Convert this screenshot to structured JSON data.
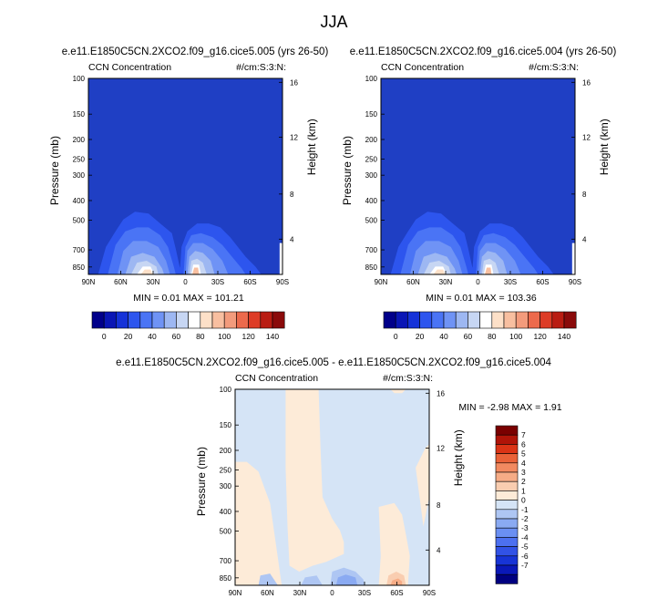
{
  "page_title": "JJA",
  "colors": {
    "base_fill": "#1f3fc4",
    "abs_levels": [
      "#01008a",
      "#0a16b5",
      "#1532d8",
      "#2d55ee",
      "#4a74f5",
      "#6f93f5",
      "#9db7f2",
      "#c7d6f3",
      "#ffffff",
      "#fde0c8",
      "#f8bfa0",
      "#f39b7c",
      "#ec6a4c",
      "#dd3c26",
      "#b91c12",
      "#8a0a0a"
    ],
    "diff_levels": [
      "#000080",
      "#0a18b8",
      "#1734d6",
      "#3152e6",
      "#4c70f0",
      "#6a8ff2",
      "#8aaaf2",
      "#aec6f3",
      "#d5e4f6",
      "#fdebd8",
      "#f9cdb0",
      "#f6ac86",
      "#f28a60",
      "#ea6238",
      "#db3416",
      "#b01408",
      "#7a0000"
    ]
  },
  "chart_data": [
    {
      "type": "heatmap",
      "title": "e.e11.E1850C5CN.2XCO2.f09_g16.cice5.005 (yrs 26-50)",
      "left_label": "CCN Concentration",
      "right_label": "#/cm:S:3:N:",
      "ylabel": "Pressure (mb)",
      "ylabel_right": "Height (km)",
      "x_ticks": [
        "90N",
        "60N",
        "30N",
        "0",
        "30S",
        "60S",
        "90S"
      ],
      "y_ticks": [
        "100",
        "150",
        "200",
        "250",
        "300",
        "400",
        "500",
        "700",
        "850"
      ],
      "height_ticks": [
        "16",
        "12",
        "8",
        "4"
      ],
      "min_value": "0.01",
      "max_value": "101.21",
      "stats_label": "MIN =   0.01   MAX = 101.21"
    },
    {
      "type": "heatmap",
      "title": "e.e11.E1850C5CN.2XCO2.f09_g16.cice5.004 (yrs 26-50)",
      "left_label": "CCN Concentration",
      "right_label": "#/cm:S:3:N:",
      "ylabel": "Pressure (mb)",
      "ylabel_right": "Height (km)",
      "x_ticks": [
        "90N",
        "60N",
        "30N",
        "0",
        "30S",
        "60S",
        "90S"
      ],
      "y_ticks": [
        "100",
        "150",
        "200",
        "250",
        "300",
        "400",
        "500",
        "700",
        "850"
      ],
      "height_ticks": [
        "16",
        "12",
        "8",
        "4"
      ],
      "min_value": "0.01",
      "max_value": "103.36",
      "stats_label": "MIN =   0.01   MAX = 103.36"
    },
    {
      "type": "heatmap",
      "title": "e.e11.E1850C5CN.2XCO2.f09_g16.cice5.005 - e.e11.E1850C5CN.2XCO2.f09_g16.cice5.004",
      "left_label": "CCN Concentration",
      "right_label": "#/cm:S:3:N:",
      "ylabel": "Pressure (mb)",
      "ylabel_right": "Height (km)",
      "x_ticks": [
        "90N",
        "60N",
        "30N",
        "0",
        "30S",
        "60S",
        "90S"
      ],
      "y_ticks": [
        "100",
        "150",
        "200",
        "250",
        "300",
        "400",
        "500",
        "700",
        "850"
      ],
      "height_ticks": [
        "16",
        "12",
        "8",
        "4"
      ],
      "min_value": "-2.98",
      "max_value": "1.91",
      "stats_label": "MIN =  -2.98  MAX =   1.91"
    }
  ],
  "abs_colorbar": {
    "labels": [
      "0",
      "20",
      "40",
      "60",
      "80",
      "100",
      "120",
      "140"
    ]
  },
  "diff_colorbar": {
    "labels": [
      "7",
      "6",
      "5",
      "4",
      "3",
      "2",
      "1",
      "0",
      "-1",
      "-2",
      "-3",
      "-4",
      "-5",
      "-6",
      "-7"
    ]
  }
}
